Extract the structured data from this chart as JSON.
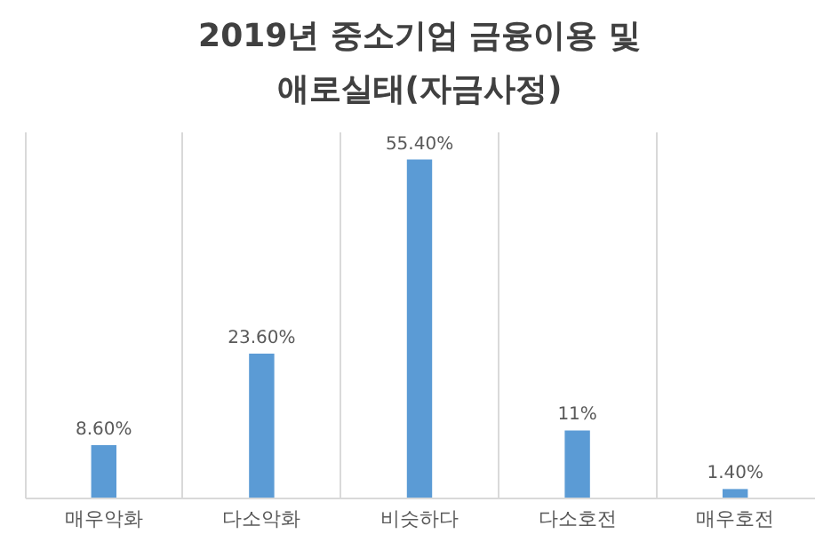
{
  "chart_data": {
    "type": "bar",
    "title": [
      "2019년 중소기업 금융이용 및",
      "애로실태(자금사정)"
    ],
    "categories": [
      "매우악화",
      "다소악화",
      "비슷하다",
      "다소호전",
      "매우호전"
    ],
    "values": [
      8.6,
      23.6,
      55.4,
      11,
      1.4
    ],
    "value_labels": [
      "8.60%",
      "23.60%",
      "55.40%",
      "11%",
      "1.40%"
    ],
    "color": "#5b9bd5",
    "grid": "x"
  }
}
